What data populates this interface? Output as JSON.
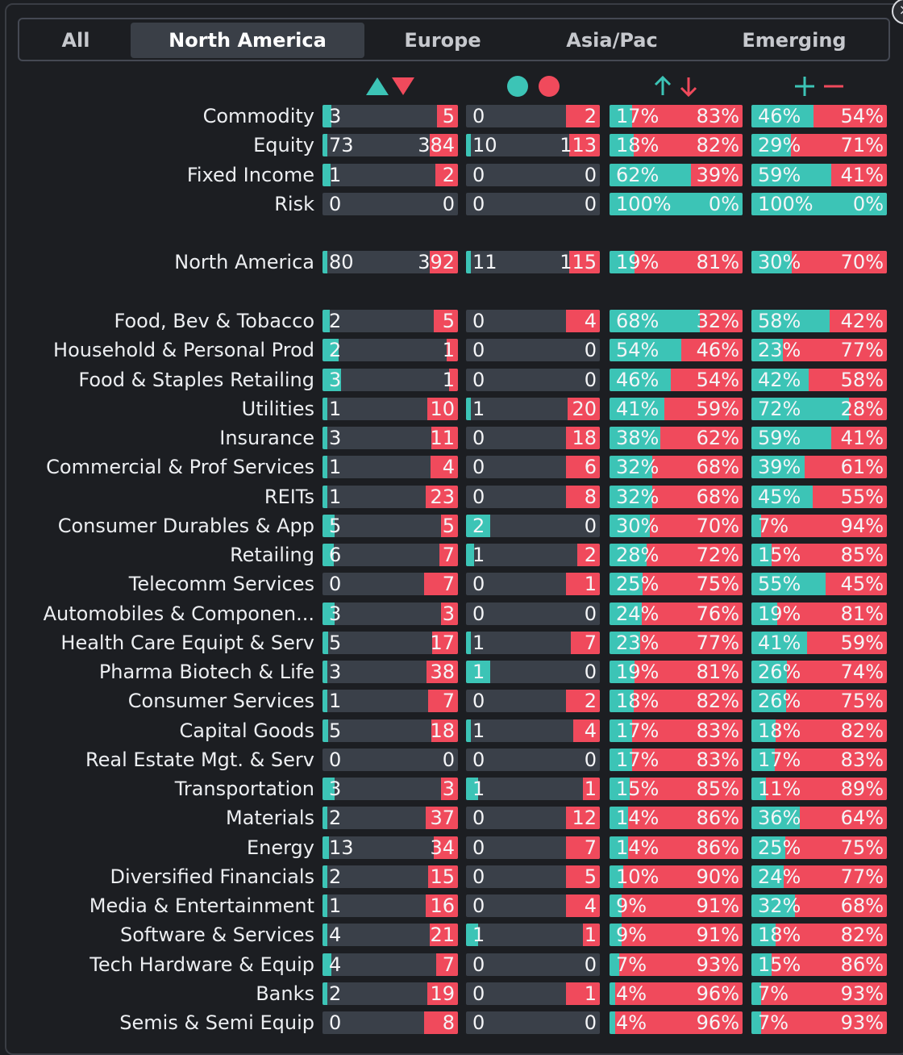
{
  "tabs": [
    {
      "label": "All",
      "active": false
    },
    {
      "label": "North America",
      "active": true
    },
    {
      "label": "Europe",
      "active": false
    },
    {
      "label": "Asia/Pac",
      "active": false
    },
    {
      "label": "Emerging",
      "active": false
    }
  ],
  "close_label": "×",
  "colors": {
    "up": "#3cc4b6",
    "down": "#f04a5c",
    "track": "#3a4049"
  },
  "header_icons": [
    "triangle-up-down-icon",
    "dot-pair-icon",
    "arrow-up-down-icon",
    "plus-minus-icon"
  ],
  "groups": [
    {
      "rows": [
        {
          "label": "Commodity",
          "a": [
            3,
            5
          ],
          "b": [
            0,
            2
          ],
          "c": [
            17,
            83
          ],
          "d": [
            46,
            54
          ]
        },
        {
          "label": "Equity",
          "a": [
            73,
            384
          ],
          "b": [
            10,
            113
          ],
          "c": [
            18,
            82
          ],
          "d": [
            29,
            71
          ]
        },
        {
          "label": "Fixed Income",
          "a": [
            1,
            2
          ],
          "b": [
            0,
            0
          ],
          "c": [
            62,
            39
          ],
          "d": [
            59,
            41
          ]
        },
        {
          "label": "Risk",
          "a": [
            0,
            0
          ],
          "b": [
            0,
            0
          ],
          "c": [
            100,
            0
          ],
          "d": [
            100,
            0
          ]
        }
      ]
    },
    {
      "rows": [
        {
          "label": "North America",
          "a": [
            80,
            392
          ],
          "b": [
            11,
            115
          ],
          "c": [
            19,
            81
          ],
          "d": [
            30,
            70
          ]
        }
      ]
    },
    {
      "rows": [
        {
          "label": "Food, Bev & Tobacco",
          "a": [
            2,
            5
          ],
          "b": [
            0,
            4
          ],
          "c": [
            68,
            32
          ],
          "d": [
            58,
            42
          ]
        },
        {
          "label": "Household & Personal Prod",
          "a": [
            2,
            1
          ],
          "b": [
            0,
            0
          ],
          "c": [
            54,
            46
          ],
          "d": [
            23,
            77
          ]
        },
        {
          "label": "Food & Staples Retailing",
          "a": [
            3,
            1
          ],
          "b": [
            0,
            0
          ],
          "c": [
            46,
            54
          ],
          "d": [
            42,
            58
          ]
        },
        {
          "label": "Utilities",
          "a": [
            1,
            10
          ],
          "b": [
            1,
            20
          ],
          "c": [
            41,
            59
          ],
          "d": [
            72,
            28
          ]
        },
        {
          "label": "Insurance",
          "a": [
            3,
            11
          ],
          "b": [
            0,
            18
          ],
          "c": [
            38,
            62
          ],
          "d": [
            59,
            41
          ]
        },
        {
          "label": "Commercial & Prof Services",
          "a": [
            1,
            4
          ],
          "b": [
            0,
            6
          ],
          "c": [
            32,
            68
          ],
          "d": [
            39,
            61
          ]
        },
        {
          "label": "REITs",
          "a": [
            1,
            23
          ],
          "b": [
            0,
            8
          ],
          "c": [
            32,
            68
          ],
          "d": [
            45,
            55
          ]
        },
        {
          "label": "Consumer Durables & App",
          "a": [
            5,
            5
          ],
          "b": [
            2,
            0
          ],
          "c": [
            30,
            70
          ],
          "d": [
            7,
            94
          ]
        },
        {
          "label": "Retailing",
          "a": [
            6,
            7
          ],
          "b": [
            1,
            2
          ],
          "c": [
            28,
            72
          ],
          "d": [
            15,
            85
          ]
        },
        {
          "label": "Telecomm Services",
          "a": [
            0,
            7
          ],
          "b": [
            0,
            1
          ],
          "c": [
            25,
            75
          ],
          "d": [
            55,
            45
          ]
        },
        {
          "label": "Automobiles & Componen...",
          "a": [
            3,
            3
          ],
          "b": [
            0,
            0
          ],
          "c": [
            24,
            76
          ],
          "d": [
            19,
            81
          ]
        },
        {
          "label": "Health Care Equipt & Serv",
          "a": [
            5,
            17
          ],
          "b": [
            1,
            7
          ],
          "c": [
            23,
            77
          ],
          "d": [
            41,
            59
          ]
        },
        {
          "label": "Pharma Biotech & Life",
          "a": [
            3,
            38
          ],
          "b": [
            1,
            0
          ],
          "c": [
            19,
            81
          ],
          "d": [
            26,
            74
          ]
        },
        {
          "label": "Consumer Services",
          "a": [
            1,
            7
          ],
          "b": [
            0,
            2
          ],
          "c": [
            18,
            82
          ],
          "d": [
            26,
            75
          ]
        },
        {
          "label": "Capital Goods",
          "a": [
            5,
            18
          ],
          "b": [
            1,
            4
          ],
          "c": [
            17,
            83
          ],
          "d": [
            18,
            82
          ]
        },
        {
          "label": "Real Estate Mgt. & Serv",
          "a": [
            0,
            0
          ],
          "b": [
            0,
            0
          ],
          "c": [
            17,
            83
          ],
          "d": [
            17,
            83
          ]
        },
        {
          "label": "Transportation",
          "a": [
            3,
            3
          ],
          "b": [
            1,
            1
          ],
          "c": [
            15,
            85
          ],
          "d": [
            11,
            89
          ]
        },
        {
          "label": "Materials",
          "a": [
            2,
            37
          ],
          "b": [
            0,
            12
          ],
          "c": [
            14,
            86
          ],
          "d": [
            36,
            64
          ]
        },
        {
          "label": "Energy",
          "a": [
            13,
            34
          ],
          "b": [
            0,
            7
          ],
          "c": [
            14,
            86
          ],
          "d": [
            25,
            75
          ]
        },
        {
          "label": "Diversified Financials",
          "a": [
            2,
            15
          ],
          "b": [
            0,
            5
          ],
          "c": [
            10,
            90
          ],
          "d": [
            24,
            77
          ]
        },
        {
          "label": "Media & Entertainment",
          "a": [
            1,
            16
          ],
          "b": [
            0,
            4
          ],
          "c": [
            9,
            91
          ],
          "d": [
            32,
            68
          ]
        },
        {
          "label": "Software & Services",
          "a": [
            4,
            21
          ],
          "b": [
            1,
            1
          ],
          "c": [
            9,
            91
          ],
          "d": [
            18,
            82
          ]
        },
        {
          "label": "Tech Hardware & Equip",
          "a": [
            4,
            7
          ],
          "b": [
            0,
            0
          ],
          "c": [
            7,
            93
          ],
          "d": [
            15,
            86
          ]
        },
        {
          "label": "Banks",
          "a": [
            2,
            19
          ],
          "b": [
            0,
            1
          ],
          "c": [
            4,
            96
          ],
          "d": [
            7,
            93
          ]
        },
        {
          "label": "Semis & Semi Equip",
          "a": [
            0,
            8
          ],
          "b": [
            0,
            0
          ],
          "c": [
            4,
            96
          ],
          "d": [
            7,
            93
          ]
        }
      ]
    }
  ]
}
